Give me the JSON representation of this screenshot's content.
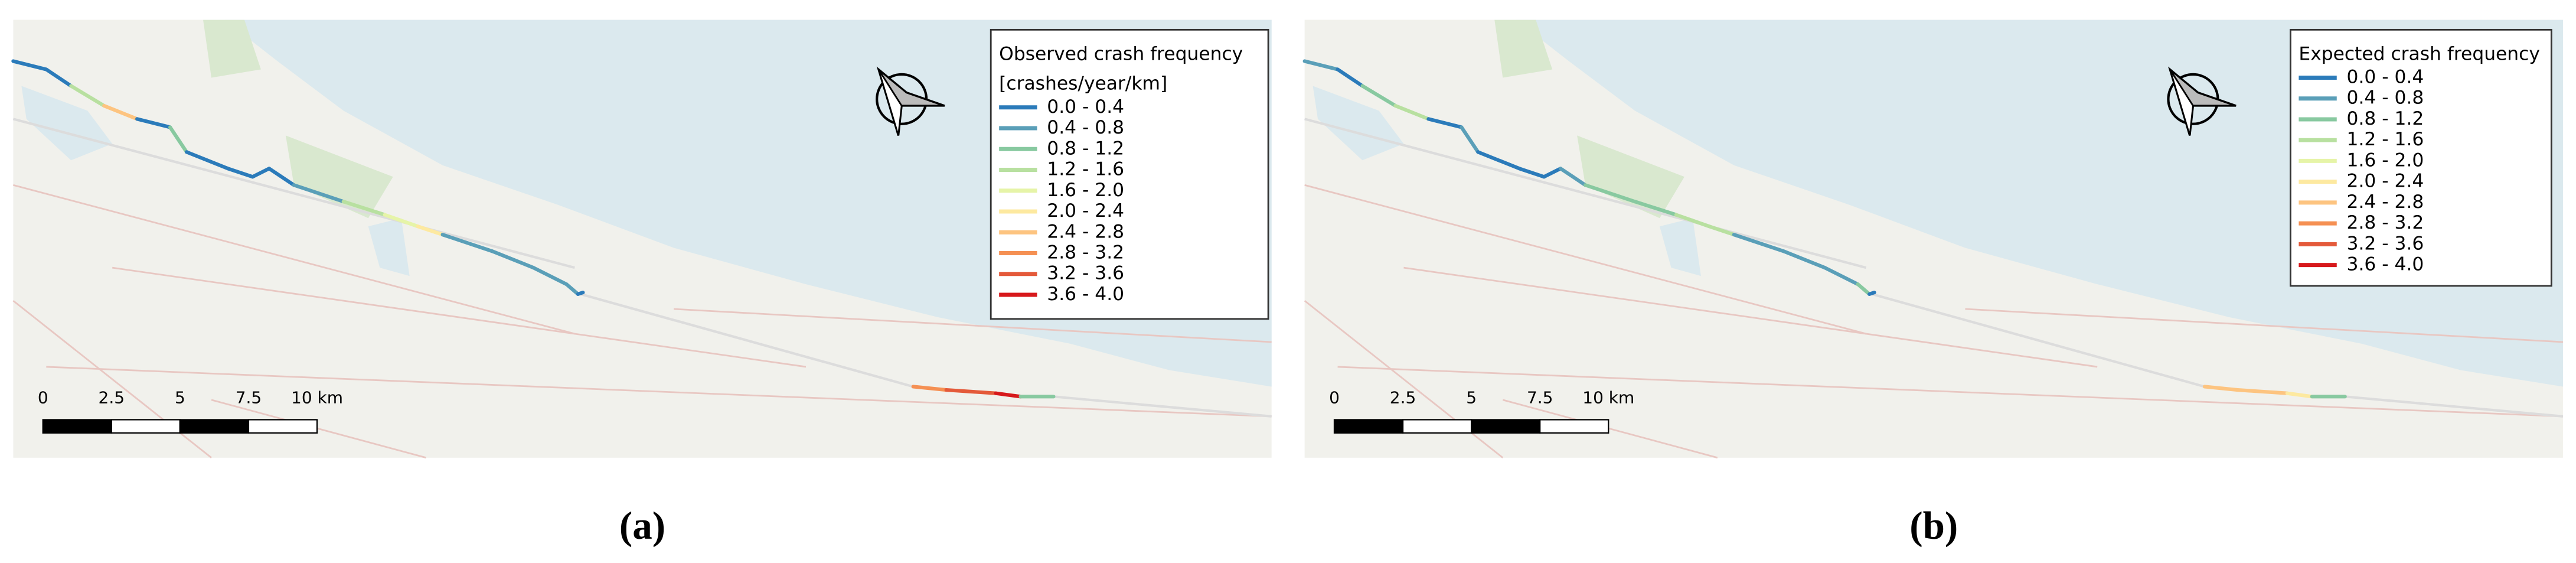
{
  "panels": [
    {
      "label": "(a)",
      "legend": {
        "title": "Observed crash frequency",
        "units": "[crashes/year/km]",
        "items": [
          {
            "label": "0.0 - 0.4",
            "color": "#2b7bba"
          },
          {
            "label": "0.4 - 0.8",
            "color": "#5a9fb8"
          },
          {
            "label": "0.8 - 1.2",
            "color": "#88c9a0"
          },
          {
            "label": "1.2 - 1.6",
            "color": "#b8e0a0"
          },
          {
            "label": "1.6 - 2.0",
            "color": "#e6f4a8"
          },
          {
            "label": "2.0 - 2.4",
            "color": "#fde9a0"
          },
          {
            "label": "2.4 - 2.8",
            "color": "#fdc480"
          },
          {
            "label": "2.8 - 3.2",
            "color": "#f59053"
          },
          {
            "label": "3.2 - 3.6",
            "color": "#e45a3a"
          },
          {
            "label": "3.6 - 4.0",
            "color": "#d7191c"
          }
        ]
      },
      "scale_bar": {
        "labels": [
          "0",
          "2.5",
          "5",
          "7.5",
          "10 km"
        ]
      }
    },
    {
      "label": "(b)",
      "legend": {
        "title": "Expected crash frequency",
        "items": [
          {
            "label": "0.0 - 0.4",
            "color": "#2b7bba"
          },
          {
            "label": "0.4 - 0.8",
            "color": "#5a9fb8"
          },
          {
            "label": "0.8 - 1.2",
            "color": "#88c9a0"
          },
          {
            "label": "1.2 - 1.6",
            "color": "#b8e0a0"
          },
          {
            "label": "1.6 - 2.0",
            "color": "#e6f4a8"
          },
          {
            "label": "2.0 - 2.4",
            "color": "#fde9a0"
          },
          {
            "label": "2.4 - 2.8",
            "color": "#fdc480"
          },
          {
            "label": "2.8 - 3.2",
            "color": "#f59053"
          },
          {
            "label": "3.2 - 3.6",
            "color": "#e45a3a"
          },
          {
            "label": "3.6 - 4.0",
            "color": "#d7191c"
          }
        ]
      },
      "scale_bar": {
        "labels": [
          "0",
          "2.5",
          "5",
          "7.5",
          "10 km"
        ]
      }
    }
  ]
}
